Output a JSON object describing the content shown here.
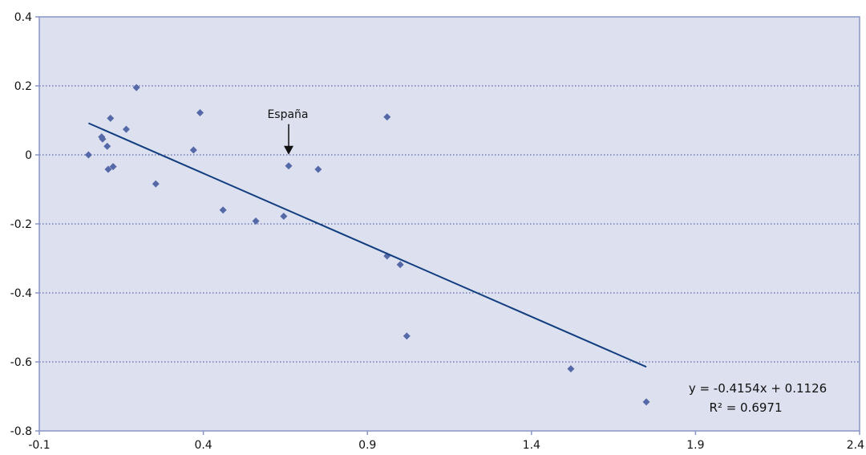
{
  "chart_data": {
    "type": "scatter",
    "title": "",
    "xlabel": "",
    "ylabel": "",
    "xlim": [
      -0.1,
      2.4
    ],
    "ylim": [
      -0.8,
      0.4
    ],
    "x_ticks": [
      -0.1,
      0.4,
      0.9,
      1.4,
      1.9,
      2.4
    ],
    "y_ticks": [
      0.4,
      0.2,
      0,
      -0.2,
      -0.4,
      -0.6,
      -0.8
    ],
    "x_tick_labels": [
      "-0.1",
      "0.4",
      "0.9",
      "1.4",
      "1.9",
      "2.4"
    ],
    "y_tick_labels": [
      "0.4",
      "0.2",
      "0",
      "-0.2",
      "-0.4",
      "-0.6",
      "-0.8"
    ],
    "grid": "horizontal dotted",
    "legend": "none",
    "series": [
      {
        "points": [
          [
            0.05,
            0.0
          ],
          [
            0.09,
            0.052
          ],
          [
            0.093,
            0.046
          ],
          [
            0.107,
            0.025
          ],
          [
            0.11,
            -0.042
          ],
          [
            0.117,
            0.106
          ],
          [
            0.125,
            -0.034
          ],
          [
            0.165,
            0.074
          ],
          [
            0.196,
            0.195
          ],
          [
            0.255,
            -0.084
          ],
          [
            0.37,
            0.014
          ],
          [
            0.39,
            0.122
          ],
          [
            0.46,
            -0.16
          ],
          [
            0.56,
            -0.192
          ],
          [
            0.645,
            -0.178
          ],
          [
            0.66,
            -0.032
          ],
          [
            0.75,
            -0.042
          ],
          [
            0.96,
            0.11
          ],
          [
            0.96,
            -0.293
          ],
          [
            1.0,
            -0.318
          ],
          [
            1.02,
            -0.525
          ],
          [
            1.52,
            -0.62
          ],
          [
            1.75,
            -0.716
          ]
        ]
      }
    ],
    "trendline": {
      "slope": -0.4154,
      "intercept": 0.1126,
      "x_range": [
        0.05,
        1.75
      ]
    },
    "annotations": [
      {
        "text": "España",
        "x": 0.66,
        "y": -0.032
      }
    ],
    "equation_text": "y = -0.4154x + 0.1126",
    "r2_text": "R² = 0.6971",
    "colors": {
      "plot_background": "#dde1ef",
      "plot_border": "#8a96c6",
      "gridline": "#3a4a9a",
      "marker": "#5569a8",
      "trendline": "#123e7f"
    }
  }
}
